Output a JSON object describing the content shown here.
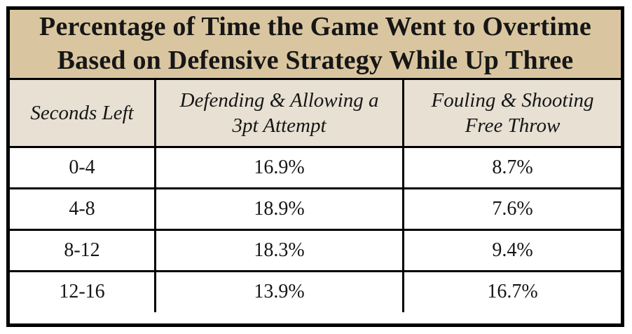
{
  "title_lines": [
    "Percentage of Time the Game Went to Overtime",
    "Based on Defensive Strategy While Up Three"
  ],
  "chart_data": {
    "type": "table",
    "title": "Percentage of Time the Game Went to Overtime Based on Defensive Strategy While Up Three",
    "columns": [
      "Seconds Left",
      "Defending & Allowing a 3pt Attempt",
      "Fouling & Shooting Free Throw"
    ],
    "rows": [
      [
        "0-4",
        "16.9%",
        "8.7%"
      ],
      [
        "4-8",
        "18.9%",
        "7.6%"
      ],
      [
        "8-12",
        "18.3%",
        "9.4%"
      ],
      [
        "12-16",
        "13.9%",
        "16.7%"
      ]
    ],
    "column_semantics": {
      "x": "seconds_left_bucket",
      "series": [
        "Defending & Allowing a 3pt Attempt",
        "Fouling & Shooting Free Throw"
      ],
      "values_unit": "percent"
    },
    "colors": {
      "title_bg": "#d9c6a0",
      "header_bg": "#e7e0d3",
      "cell_bg": "#ffffff",
      "border": "#000000",
      "text": "#161616"
    }
  }
}
